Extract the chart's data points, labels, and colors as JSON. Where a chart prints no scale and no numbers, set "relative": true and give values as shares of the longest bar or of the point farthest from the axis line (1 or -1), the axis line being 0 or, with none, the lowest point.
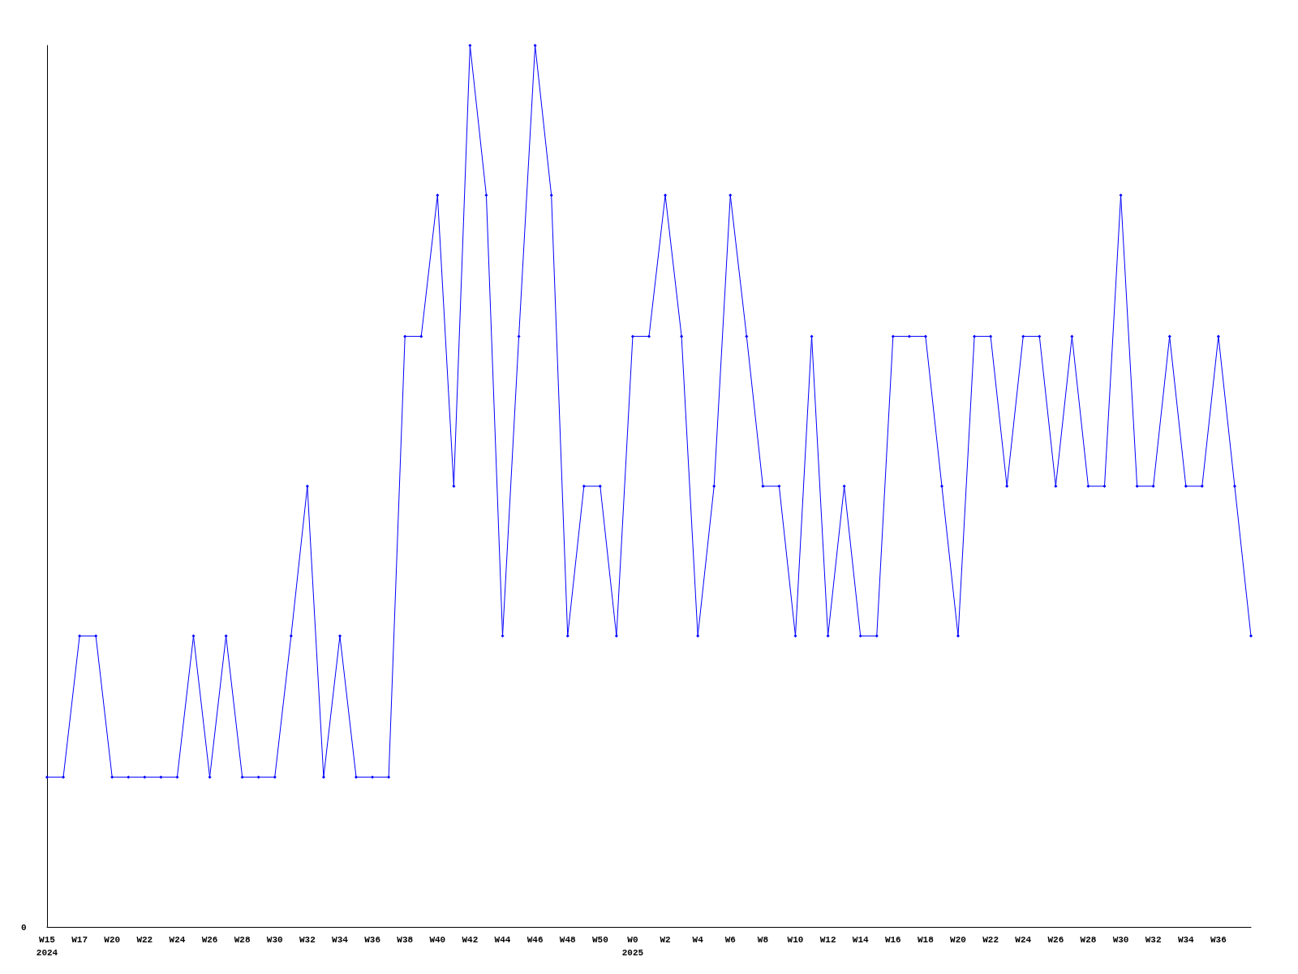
{
  "chart_data": {
    "type": "line",
    "relative": true,
    "color": "#0000ff",
    "marker": "diamond",
    "line_style": "solid",
    "annotations": [
      "0"
    ],
    "categories": [
      "W15\n2024",
      null,
      "W17",
      null,
      "W20",
      null,
      "W22",
      null,
      "W24",
      null,
      "W26",
      null,
      "W28",
      null,
      "W30",
      null,
      "W32",
      null,
      "W34",
      null,
      "W36",
      null,
      "W38",
      null,
      "W40",
      null,
      "W42",
      null,
      "W44",
      null,
      "W46",
      null,
      "W48",
      null,
      "W50",
      null,
      "W0\n2025",
      null,
      "W2",
      null,
      "W4",
      null,
      "W6",
      null,
      "W8",
      null,
      "W10",
      null,
      "W12",
      null,
      "W14",
      null,
      "W16",
      null,
      "W18",
      null,
      "W20",
      null,
      "W22",
      null,
      "W24",
      null,
      "W26",
      null,
      "W28",
      null,
      "W30",
      null,
      "W32",
      null,
      "W34",
      null,
      "W36",
      null,
      null
    ],
    "values": [
      0.17,
      0.17,
      0.33,
      0.33,
      0.17,
      0.17,
      0.17,
      0.17,
      0.17,
      0.33,
      0.17,
      0.33,
      0.17,
      0.17,
      0.17,
      0.33,
      0.5,
      0.17,
      0.33,
      0.17,
      0.17,
      0.17,
      0.67,
      0.67,
      0.83,
      0.5,
      1,
      0.83,
      0.33,
      0.67,
      1,
      0.83,
      0.33,
      0.5,
      0.5,
      0.33,
      0.67,
      0.67,
      0.83,
      0.67,
      0.33,
      0.5,
      0.83,
      0.67,
      0.5,
      0.5,
      0.33,
      0.67,
      0.33,
      0.5,
      0.33,
      0.33,
      0.67,
      0.67,
      0.67,
      0.5,
      0.33,
      0.67,
      0.67,
      0.5,
      0.67,
      0.67,
      0.5,
      0.67,
      0.5,
      0.5,
      0.83,
      0.5,
      0.5,
      0.67,
      0.5,
      0.5,
      0.67,
      0.5,
      0.33
    ]
  }
}
